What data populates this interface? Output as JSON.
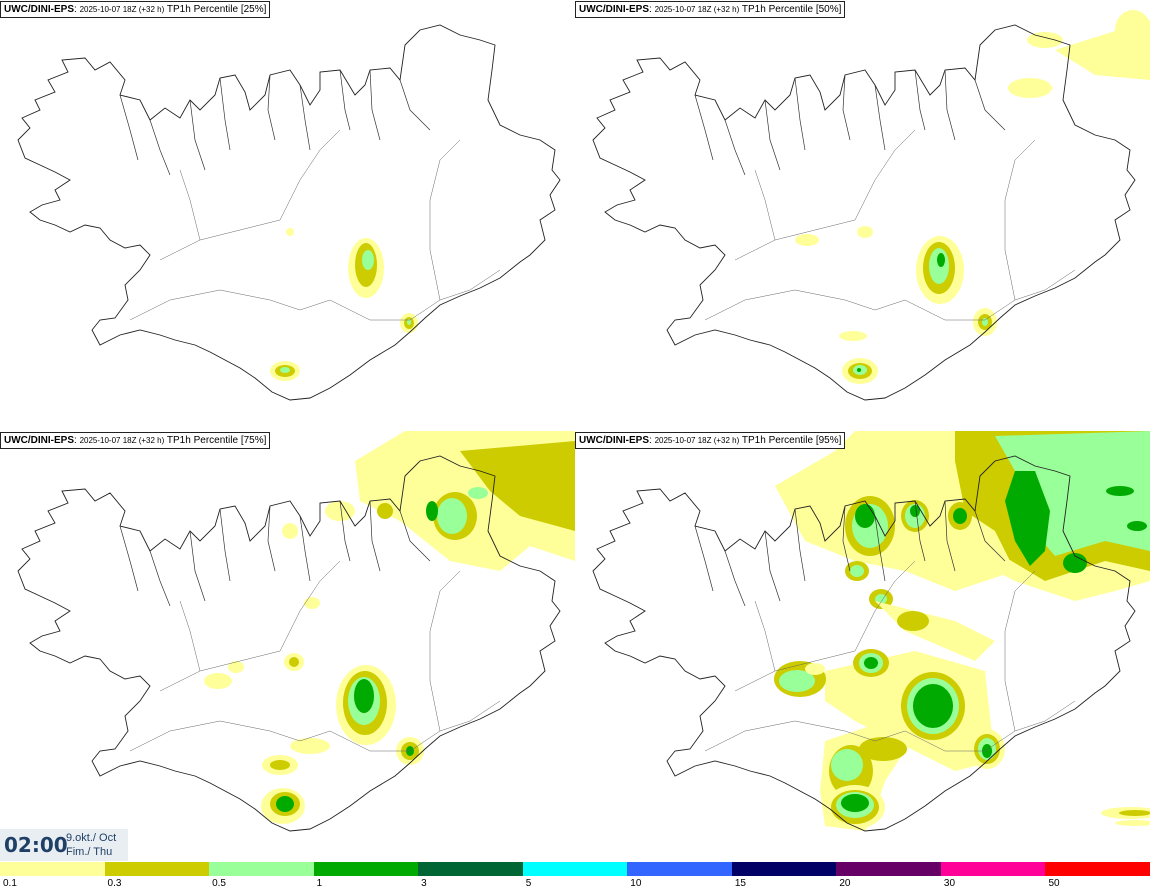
{
  "panels": [
    {
      "model": "UWC/DINI-EPS",
      "run": "2025-10-07 18Z (+32 h)",
      "param": "TP1h Percentile [25%]"
    },
    {
      "model": "UWC/DINI-EPS",
      "run": "2025-10-07 18Z (+32 h)",
      "param": "TP1h Percentile [50%]"
    },
    {
      "model": "UWC/DINI-EPS",
      "run": "2025-10-07 18Z (+32 h)",
      "param": "TP1h Percentile [75%]"
    },
    {
      "model": "UWC/DINI-EPS",
      "run": "2025-10-07 18Z (+32 h)",
      "param": "TP1h Percentile [95%]"
    }
  ],
  "valid_time": {
    "clock": "02:00",
    "date_line1": "9.okt./ Oct",
    "date_line2": "Fim./ Thu"
  },
  "legend": {
    "colors": [
      "#ffff99",
      "#cccc00",
      "#99ff99",
      "#00aa00",
      "#006633",
      "#00ffff",
      "#3366ff",
      "#000066",
      "#660066",
      "#ff0099",
      "#ff0000"
    ],
    "labels": [
      "0.1",
      "0.3",
      "0.5",
      "1",
      "3",
      "5",
      "10",
      "15",
      "20",
      "30",
      "50"
    ]
  }
}
